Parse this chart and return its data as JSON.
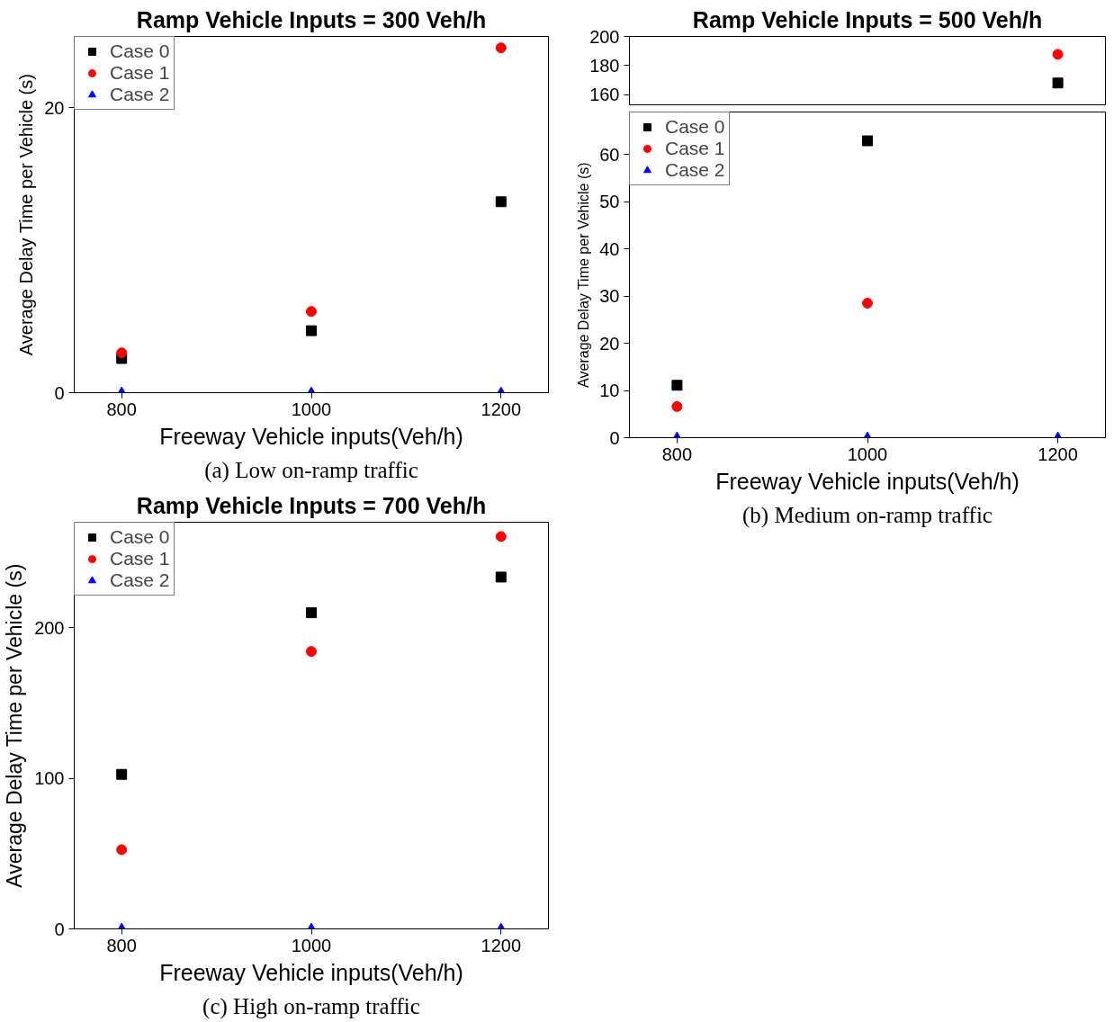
{
  "chart_data": [
    {
      "type": "scatter",
      "title": "Ramp Vehicle Inputs = 300 Veh/h",
      "xlabel": "Freeway Vehicle inputs(Veh/h)",
      "ylabel": "Average Delay Time per Vehicle (s)",
      "annotations": [
        "(a) Low on-ramp traffic"
      ],
      "x": [
        800,
        1000,
        1200
      ],
      "xlim": [
        750,
        1250
      ],
      "xticks": [
        800,
        1000,
        1200
      ],
      "ylim": [
        0,
        25
      ],
      "yticks": [
        0,
        20
      ],
      "grid": false,
      "legend": "top left",
      "series": [
        {
          "name": "Case 0",
          "color": "#000000",
          "marker": "square",
          "values": [
            2.4,
            4.35,
            13.4
          ]
        },
        {
          "name": "Case 1",
          "color": "#ff0000",
          "marker": "circle",
          "values": [
            2.8,
            5.7,
            24.2
          ]
        },
        {
          "name": "Case 2",
          "color": "#0000ff",
          "marker": "triangle",
          "values": [
            0,
            0,
            0
          ]
        }
      ]
    },
    {
      "type": "scatter",
      "title": "Ramp Vehicle Inputs = 500 Veh/h",
      "xlim": [
        750,
        1250
      ],
      "xticks": [
        800,
        1000,
        1200
      ],
      "ylim": [
        153,
        200
      ],
      "yticks": [
        160,
        180,
        200
      ],
      "tick_labels": "y",
      "grid": false,
      "series": [
        {
          "color": "#000000",
          "marker": "square",
          "x": [
            1200
          ],
          "values": [
            168
          ]
        },
        {
          "color": "#ff0000",
          "marker": "circle",
          "x": [
            1200
          ],
          "values": [
            187.7
          ]
        }
      ]
    },
    {
      "type": "scatter",
      "xlabel": "Freeway Vehicle inputs(Veh/h)",
      "ylabel": "Average Delay Time per Vehicle (s)",
      "annotations": [
        "(b) Medium on-ramp traffic"
      ],
      "xlim": [
        750,
        1250
      ],
      "xticks": [
        800,
        1000,
        1200
      ],
      "ylim": [
        0,
        69
      ],
      "yticks": [
        0,
        10,
        20,
        30,
        40,
        50,
        60
      ],
      "grid": false,
      "legend": "top left",
      "series": [
        {
          "name": "Case 0",
          "color": "#000000",
          "marker": "square",
          "x": [
            800,
            1000
          ],
          "values": [
            11.1,
            62.9
          ]
        },
        {
          "name": "Case 1",
          "color": "#ff0000",
          "marker": "circle",
          "x": [
            800,
            1000
          ],
          "values": [
            6.6,
            28.5
          ]
        },
        {
          "name": "Case 2",
          "color": "#0000ff",
          "marker": "triangle",
          "x": [
            800,
            1000,
            1200
          ],
          "values": [
            0,
            0,
            0
          ]
        }
      ]
    },
    {
      "type": "scatter",
      "title": "Ramp Vehicle Inputs = 700 Veh/h",
      "xlabel": "Freeway Vehicle inputs(Veh/h)",
      "ylabel": "Average Delay Time per Vehicle (s)",
      "annotations": [
        "(c) High on-ramp traffic"
      ],
      "x": [
        800,
        1000,
        1200
      ],
      "xlim": [
        750,
        1250
      ],
      "xticks": [
        800,
        1000,
        1200
      ],
      "ylim": [
        0,
        270
      ],
      "yticks": [
        0,
        100,
        200
      ],
      "grid": false,
      "legend": "top left",
      "series": [
        {
          "name": "Case 0",
          "color": "#000000",
          "marker": "square",
          "values": [
            102.6,
            209.9,
            233.6
          ]
        },
        {
          "name": "Case 1",
          "color": "#ff0000",
          "marker": "circle",
          "values": [
            52.6,
            184.2,
            260.5
          ]
        },
        {
          "name": "Case 2",
          "color": "#0000ff",
          "marker": "triangle",
          "values": [
            0,
            0,
            0
          ]
        }
      ]
    }
  ]
}
